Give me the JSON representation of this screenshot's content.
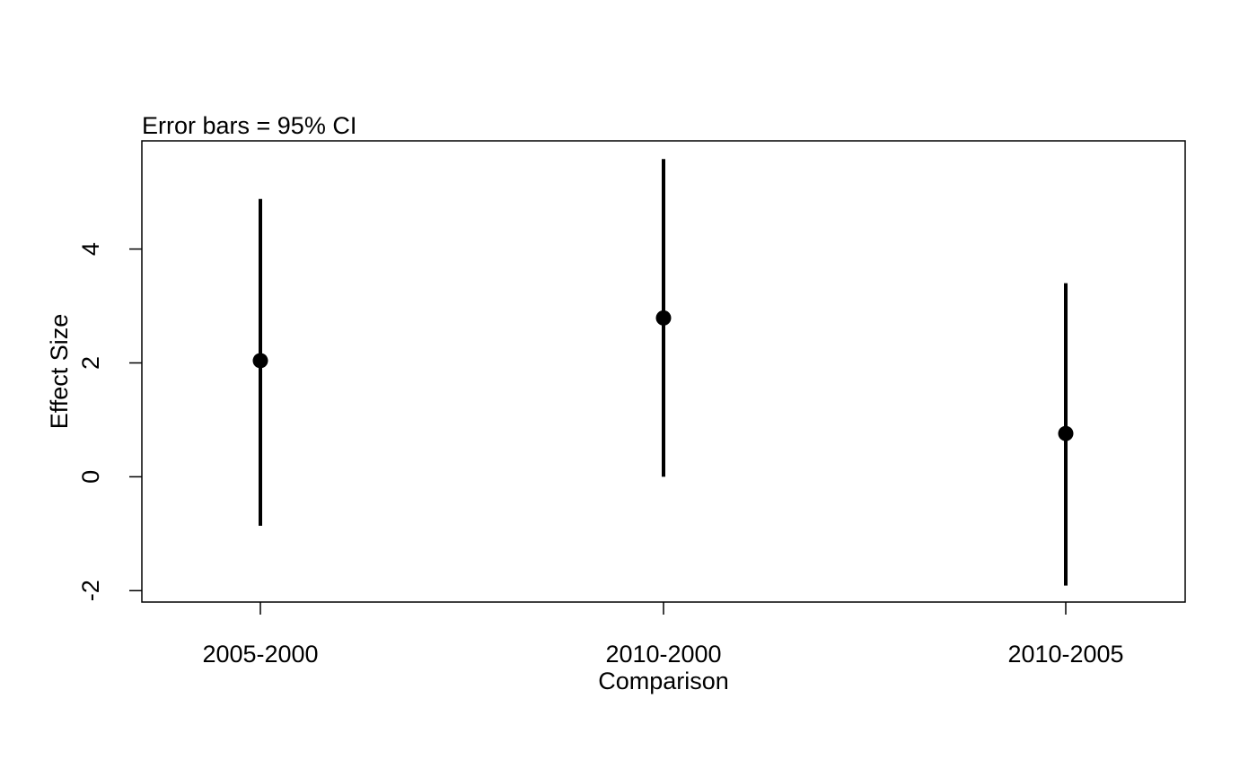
{
  "chart_data": {
    "type": "scatter",
    "title": "Error bars = 95% CI",
    "xlabel": "Comparison",
    "ylabel": "Effect Size",
    "categories": [
      "2005-2000",
      "2010-2000",
      "2010-2005"
    ],
    "estimates": [
      2.04,
      2.79,
      0.76
    ],
    "ci_lower": [
      -0.86,
      0.0,
      -1.91
    ],
    "ci_upper": [
      4.88,
      5.58,
      3.4
    ],
    "ylim": [
      -2.2,
      5.9
    ],
    "yticks": [
      -2,
      0,
      2,
      4
    ],
    "ytick_labels": [
      "-2",
      "0",
      "2",
      "4"
    ],
    "grid": false,
    "legend": "none",
    "colors": {
      "marker": "#000000",
      "errorbar": "#000000",
      "frame": "#000000",
      "background": "#ffffff"
    }
  }
}
